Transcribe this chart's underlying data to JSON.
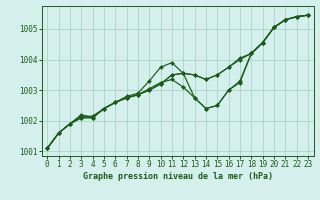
{
  "xlabel": "Graphe pression niveau de la mer (hPa)",
  "background_color": "#d5efed",
  "grid_color": "#b0d8cc",
  "line_color": "#1a5c1a",
  "marker_color": "#1a5c1a",
  "series": [
    [
      1001.1,
      1001.6,
      1001.9,
      1002.2,
      1002.1,
      1002.4,
      1002.6,
      1002.8,
      1002.9,
      1003.3,
      1003.75,
      1003.9,
      1003.55,
      1002.75,
      1002.4,
      1002.5,
      1003.0,
      1003.3,
      1004.2,
      1004.55,
      1005.05,
      1005.3,
      1005.4,
      1005.45
    ],
    [
      1001.1,
      1001.6,
      1001.9,
      1002.1,
      1002.1,
      1002.4,
      1002.6,
      1002.75,
      1002.85,
      1003.0,
      1003.2,
      1003.5,
      1003.55,
      1003.5,
      1003.35,
      1003.5,
      1003.75,
      1004.05,
      1004.2,
      1004.55,
      1005.05,
      1005.3,
      1005.4,
      1005.45
    ],
    [
      1001.1,
      1001.6,
      1001.9,
      1002.1,
      1002.1,
      1002.4,
      1002.6,
      1002.75,
      1002.85,
      1003.0,
      1003.2,
      1003.5,
      1003.55,
      1003.5,
      1003.35,
      1003.5,
      1003.75,
      1004.0,
      1004.2,
      1004.55,
      1005.05,
      1005.3,
      1005.4,
      1005.45
    ],
    [
      1001.1,
      1001.6,
      1001.9,
      1002.15,
      1002.15,
      1002.4,
      1002.6,
      1002.75,
      1002.85,
      1003.05,
      1003.25,
      1003.35,
      1003.1,
      1002.75,
      1002.4,
      1002.5,
      1003.0,
      1003.25,
      1004.2,
      1004.55,
      1005.05,
      1005.3,
      1005.4,
      1005.45
    ]
  ],
  "x": [
    0,
    1,
    2,
    3,
    4,
    5,
    6,
    7,
    8,
    9,
    10,
    11,
    12,
    13,
    14,
    15,
    16,
    17,
    18,
    19,
    20,
    21,
    22,
    23
  ],
  "ylim": [
    1000.85,
    1005.75
  ],
  "yticks": [
    1001,
    1002,
    1003,
    1004,
    1005
  ],
  "xticks": [
    0,
    1,
    2,
    3,
    4,
    5,
    6,
    7,
    8,
    9,
    10,
    11,
    12,
    13,
    14,
    15,
    16,
    17,
    18,
    19,
    20,
    21,
    22,
    23
  ],
  "tick_fontsize": 5.5,
  "xlabel_fontsize": 6.0
}
